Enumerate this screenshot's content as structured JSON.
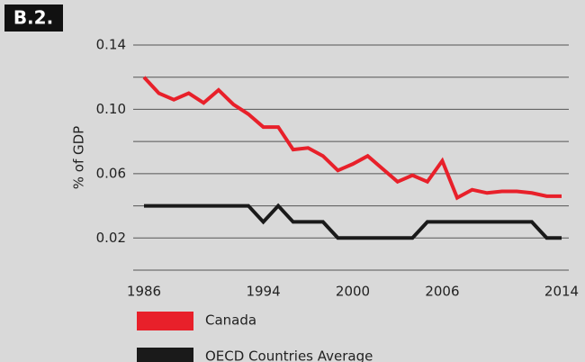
{
  "chart_data": {
    "type": "line",
    "label": "B.2.",
    "ylabel": "% of GDP",
    "x": [
      1986,
      1987,
      1988,
      1989,
      1990,
      1991,
      1992,
      1993,
      1994,
      1995,
      1996,
      1997,
      1998,
      1999,
      2000,
      2001,
      2002,
      2003,
      2004,
      2005,
      2006,
      2007,
      2008,
      2009,
      2010,
      2011,
      2012,
      2013,
      2014
    ],
    "series": [
      {
        "name": "Canada",
        "color": "#e8202a",
        "values": [
          0.12,
          0.11,
          0.106,
          0.11,
          0.104,
          0.112,
          0.103,
          0.097,
          0.089,
          0.089,
          0.075,
          0.076,
          0.071,
          0.062,
          0.066,
          0.071,
          0.063,
          0.055,
          0.059,
          0.055,
          0.068,
          0.045,
          0.05,
          0.048,
          0.049,
          0.049,
          0.048,
          0.046,
          0.046
        ]
      },
      {
        "name": "OECD Countries Average",
        "color": "#1a1a1a",
        "values": [
          0.04,
          0.04,
          0.04,
          0.04,
          0.04,
          0.04,
          0.04,
          0.04,
          0.03,
          0.04,
          0.03,
          0.03,
          0.03,
          0.02,
          0.02,
          0.02,
          0.02,
          0.02,
          0.02,
          0.03,
          0.03,
          0.03,
          0.03,
          0.03,
          0.03,
          0.03,
          0.03,
          0.02,
          0.02
        ]
      }
    ],
    "xlim": [
      1986,
      2014
    ],
    "xticks": [
      1986,
      1994,
      2000,
      2006,
      2014
    ],
    "ylim": [
      0,
      0.14
    ],
    "yticks": [
      0.14,
      {
        "value": 0.1,
        "label": "0.10"
      },
      0.06,
      0.02
    ],
    "minor_yticks": [
      0.12,
      0.08,
      0.04,
      0
    ],
    "grid": true,
    "legend": "bottom"
  }
}
